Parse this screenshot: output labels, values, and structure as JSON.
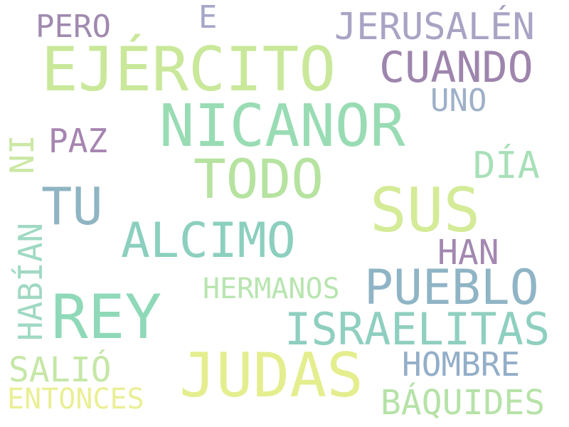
{
  "background": "#ffffff",
  "words": [
    {
      "text": "EJÉRCITO",
      "color": "#c9e89a"
    },
    {
      "text": "NICANOR",
      "color": "#99dcb4"
    },
    {
      "text": "SUS",
      "color": "#d4eb97"
    },
    {
      "text": "JUDAS",
      "color": "#e4ee8e"
    },
    {
      "text": "REY",
      "color": "#8fd9b8"
    },
    {
      "text": "TODO",
      "color": "#b6e3a0"
    },
    {
      "text": "PUEBLO",
      "color": "#8fb4c5"
    },
    {
      "text": "CUANDO",
      "color": "#9e85ad"
    },
    {
      "text": "JERUSALÉN",
      "color": "#a9a3c4"
    },
    {
      "text": "ISRAELITAS",
      "color": "#8fcfc0"
    },
    {
      "text": "ALCIMO",
      "color": "#8ccfbf"
    },
    {
      "text": "TU",
      "color": "#8fb4c2"
    },
    {
      "text": "PERO",
      "color": "#a08aaf"
    },
    {
      "text": "E",
      "color": "#a5a6c8"
    },
    {
      "text": "UNO",
      "color": "#9fb0c8"
    },
    {
      "text": "DÍA",
      "color": "#a8e0b8"
    },
    {
      "text": "PAZ",
      "color": "#a685b0"
    },
    {
      "text": "NI",
      "color": "#cbe8a4"
    },
    {
      "text": "HABÍAN",
      "color": "#a0d9c3"
    },
    {
      "text": "HAN",
      "color": "#a388b0"
    },
    {
      "text": "HERMANOS",
      "color": "#b8e5b0"
    },
    {
      "text": "HOMBRE",
      "color": "#93aec8"
    },
    {
      "text": "SALIÓ",
      "color": "#c6e7a7"
    },
    {
      "text": "ENTONCES",
      "color": "#eaef95"
    },
    {
      "text": "BÁQUIDES",
      "color": "#b6e2a8"
    }
  ]
}
